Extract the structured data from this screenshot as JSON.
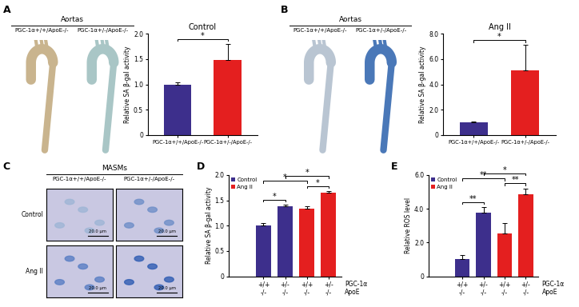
{
  "chart_data": [
    {
      "type": "bar",
      "title": "Control",
      "y_label": "Relative SA β-gal activity",
      "categories": [
        "PGC-1α+/+/ApoE-/-",
        "PGC-1α+/-/ApoE-/-"
      ],
      "values": [
        1.0,
        1.48
      ],
      "errors": [
        0.04,
        0.32
      ],
      "colors": [
        "#3d2f8c",
        "#e41f1f"
      ],
      "ylim": [
        0,
        2.0
      ],
      "yticks": [
        0,
        0.5,
        1.0,
        1.5,
        2.0
      ],
      "annotations": [
        {
          "pair": [
            0,
            1
          ],
          "text": "*"
        }
      ]
    },
    {
      "type": "bar",
      "title": "Ang II",
      "y_label": "Relative SA β-gal activity",
      "categories": [
        "PGC-1α+/+/ApoE-/-",
        "PGC-1α+/-/ApoE-/-"
      ],
      "values": [
        1.0,
        5.1
      ],
      "errors": [
        0.1,
        2.0
      ],
      "colors": [
        "#3d2f8c",
        "#e41f1f"
      ],
      "ylim": [
        0,
        8.0
      ],
      "yticks": [
        0,
        2.0,
        4.0,
        6.0,
        8.0
      ],
      "annotations": [
        {
          "pair": [
            0,
            1
          ],
          "text": "*"
        }
      ]
    },
    {
      "type": "bar",
      "y_label": "Relative SA β-gal activity",
      "categories": [
        "+/+\n-/-",
        "+/-\n-/-",
        "+/+\n-/-",
        "+/-\n-/-"
      ],
      "row_labels": [
        "PGC-1α",
        "ApoE"
      ],
      "series": [
        {
          "name": "Control",
          "color": "#3d2f8c",
          "values": [
            1.0,
            1.38,
            null,
            null
          ],
          "errors": [
            0.05,
            0.03,
            null,
            null
          ]
        },
        {
          "name": "Ang II",
          "color": "#e41f1f",
          "values": [
            null,
            null,
            1.33,
            1.65
          ],
          "errors": [
            null,
            null,
            0.05,
            0.03
          ]
        }
      ],
      "legend": "upper left",
      "ylim": [
        0,
        2.0
      ],
      "yticks": [
        0,
        0.5,
        1.0,
        1.5,
        2.0
      ],
      "annotations": [
        {
          "pair": [
            0,
            1
          ],
          "text": "*"
        },
        {
          "pair": [
            2,
            3
          ],
          "text": "*"
        },
        {
          "pair": [
            0,
            2
          ],
          "text": "*"
        },
        {
          "pair": [
            1,
            3
          ],
          "text": "*"
        }
      ]
    },
    {
      "type": "bar",
      "y_label": "Relative ROS level",
      "categories": [
        "+/+\n-/-",
        "+/-\n-/-",
        "+/+\n-/-",
        "+/-\n-/-"
      ],
      "row_labels": [
        "PGC-1α",
        "ApoE"
      ],
      "series": [
        {
          "name": "Control",
          "color": "#3d2f8c",
          "values": [
            1.0,
            3.75,
            null,
            null
          ],
          "errors": [
            0.25,
            0.35,
            null,
            null
          ]
        },
        {
          "name": "Ang II",
          "color": "#e41f1f",
          "values": [
            null,
            null,
            2.55,
            4.85
          ],
          "errors": [
            null,
            null,
            0.6,
            0.35
          ]
        }
      ],
      "legend": "upper left",
      "ylim": [
        0,
        6.0
      ],
      "yticks": [
        0,
        2.0,
        4.0,
        6.0
      ],
      "annotations": [
        {
          "pair": [
            0,
            1
          ],
          "text": "**"
        },
        {
          "pair": [
            2,
            3
          ],
          "text": "**"
        },
        {
          "pair": [
            0,
            2
          ],
          "text": "**"
        },
        {
          "pair": [
            1,
            3
          ],
          "text": "*"
        }
      ]
    }
  ],
  "figure": {
    "panel_labels": [
      "A",
      "B",
      "C",
      "D",
      "E"
    ],
    "image_panels": [
      {
        "header": "Aortas",
        "columns": [
          "PGC-1α+/+/ApoE-/-",
          "PGC-1α+/-/ApoE-/-"
        ]
      },
      {
        "header": "Aortas",
        "columns": [
          "PGC-1α+/+/ApoE-/-",
          "PGC-1α+/-/ApoE-/-"
        ]
      },
      {
        "header": "MASMs",
        "columns": [
          "PGC-1α+/+/ApoE-/-",
          "PGC-1α+/-/ApoE-/-"
        ],
        "rows": [
          "Control",
          "Ang II"
        ],
        "scale_bar": "20.0 μm"
      }
    ]
  }
}
